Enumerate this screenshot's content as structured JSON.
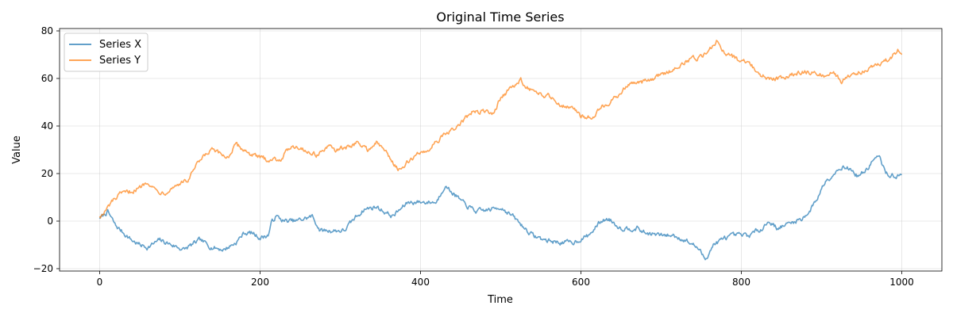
{
  "chart_data": {
    "type": "line",
    "title": "Original Time Series",
    "xlabel": "Time",
    "ylabel": "Value",
    "xlim": [
      -50,
      1050
    ],
    "ylim": [
      -21,
      81
    ],
    "xticks": [
      0,
      200,
      400,
      600,
      800,
      1000
    ],
    "yticks": [
      -20,
      0,
      20,
      40,
      60,
      80
    ],
    "grid": true,
    "legend_position": "top-left",
    "series": [
      {
        "name": "Series X",
        "color": "#1f77b4",
        "anchors": [
          [
            0,
            1
          ],
          [
            10,
            4
          ],
          [
            20,
            -2
          ],
          [
            30,
            -5
          ],
          [
            40,
            -8
          ],
          [
            50,
            -10
          ],
          [
            60,
            -11
          ],
          [
            75,
            -8
          ],
          [
            90,
            -10
          ],
          [
            105,
            -12
          ],
          [
            115,
            -10
          ],
          [
            125,
            -8
          ],
          [
            140,
            -11
          ],
          [
            155,
            -12
          ],
          [
            170,
            -9
          ],
          [
            180,
            -5
          ],
          [
            190,
            -5
          ],
          [
            200,
            -7
          ],
          [
            210,
            -6
          ],
          [
            215,
            0
          ],
          [
            220,
            2
          ],
          [
            230,
            0
          ],
          [
            245,
            0
          ],
          [
            255,
            1
          ],
          [
            265,
            2
          ],
          [
            275,
            -4
          ],
          [
            290,
            -4
          ],
          [
            305,
            -4
          ],
          [
            320,
            2
          ],
          [
            330,
            5
          ],
          [
            345,
            6
          ],
          [
            355,
            4
          ],
          [
            365,
            2
          ],
          [
            375,
            5
          ],
          [
            385,
            8
          ],
          [
            400,
            8
          ],
          [
            420,
            8
          ],
          [
            430,
            15
          ],
          [
            440,
            12
          ],
          [
            455,
            7
          ],
          [
            470,
            4
          ],
          [
            490,
            5
          ],
          [
            500,
            6
          ],
          [
            515,
            2
          ],
          [
            530,
            -3
          ],
          [
            540,
            -6
          ],
          [
            555,
            -8
          ],
          [
            575,
            -9
          ],
          [
            590,
            -9
          ],
          [
            610,
            -6
          ],
          [
            625,
            0
          ],
          [
            635,
            1
          ],
          [
            650,
            -3
          ],
          [
            670,
            -3
          ],
          [
            680,
            -5
          ],
          [
            700,
            -6
          ],
          [
            715,
            -6
          ],
          [
            730,
            -8
          ],
          [
            745,
            -11
          ],
          [
            755,
            -16
          ],
          [
            765,
            -10
          ],
          [
            780,
            -7
          ],
          [
            795,
            -6
          ],
          [
            810,
            -6
          ],
          [
            825,
            -3
          ],
          [
            835,
            0
          ],
          [
            845,
            -3
          ],
          [
            860,
            -1
          ],
          [
            875,
            1
          ],
          [
            885,
            4
          ],
          [
            895,
            10
          ],
          [
            905,
            17
          ],
          [
            915,
            20
          ],
          [
            925,
            23
          ],
          [
            935,
            22
          ],
          [
            945,
            19
          ],
          [
            955,
            21
          ],
          [
            965,
            26
          ],
          [
            972,
            27
          ],
          [
            980,
            20
          ],
          [
            990,
            19
          ],
          [
            1000,
            19
          ]
        ]
      },
      {
        "name": "Series Y",
        "color": "#ff7f0e",
        "anchors": [
          [
            0,
            2
          ],
          [
            5,
            3
          ],
          [
            15,
            8
          ],
          [
            25,
            11
          ],
          [
            35,
            12
          ],
          [
            50,
            14
          ],
          [
            60,
            17
          ],
          [
            70,
            13
          ],
          [
            80,
            12
          ],
          [
            90,
            14
          ],
          [
            100,
            16
          ],
          [
            110,
            17
          ],
          [
            120,
            23
          ],
          [
            130,
            27
          ],
          [
            140,
            30
          ],
          [
            150,
            28
          ],
          [
            160,
            27
          ],
          [
            170,
            32
          ],
          [
            180,
            30
          ],
          [
            195,
            27
          ],
          [
            210,
            26
          ],
          [
            225,
            26
          ],
          [
            240,
            32
          ],
          [
            250,
            31
          ],
          [
            260,
            29
          ],
          [
            270,
            28
          ],
          [
            285,
            31
          ],
          [
            295,
            30
          ],
          [
            310,
            31
          ],
          [
            320,
            33
          ],
          [
            335,
            30
          ],
          [
            345,
            33
          ],
          [
            355,
            30
          ],
          [
            365,
            25
          ],
          [
            375,
            21
          ],
          [
            385,
            25
          ],
          [
            395,
            28
          ],
          [
            410,
            30
          ],
          [
            420,
            34
          ],
          [
            435,
            37
          ],
          [
            450,
            41
          ],
          [
            465,
            46
          ],
          [
            480,
            46
          ],
          [
            490,
            45
          ],
          [
            500,
            52
          ],
          [
            510,
            55
          ],
          [
            525,
            59
          ],
          [
            535,
            56
          ],
          [
            545,
            53
          ],
          [
            560,
            53
          ],
          [
            575,
            49
          ],
          [
            590,
            48
          ],
          [
            600,
            44
          ],
          [
            615,
            44
          ],
          [
            625,
            48
          ],
          [
            640,
            51
          ],
          [
            650,
            54
          ],
          [
            660,
            58
          ],
          [
            675,
            58
          ],
          [
            690,
            60
          ],
          [
            705,
            62
          ],
          [
            720,
            65
          ],
          [
            735,
            68
          ],
          [
            750,
            69
          ],
          [
            760,
            72
          ],
          [
            770,
            76
          ],
          [
            780,
            71
          ],
          [
            795,
            68
          ],
          [
            810,
            67
          ],
          [
            820,
            62
          ],
          [
            835,
            60
          ],
          [
            850,
            60
          ],
          [
            865,
            62
          ],
          [
            880,
            63
          ],
          [
            895,
            62
          ],
          [
            905,
            61
          ],
          [
            915,
            63
          ],
          [
            925,
            59
          ],
          [
            935,
            61
          ],
          [
            950,
            63
          ],
          [
            960,
            65
          ],
          [
            975,
            66
          ],
          [
            990,
            70
          ],
          [
            995,
            72
          ],
          [
            1000,
            71
          ]
        ]
      }
    ]
  }
}
